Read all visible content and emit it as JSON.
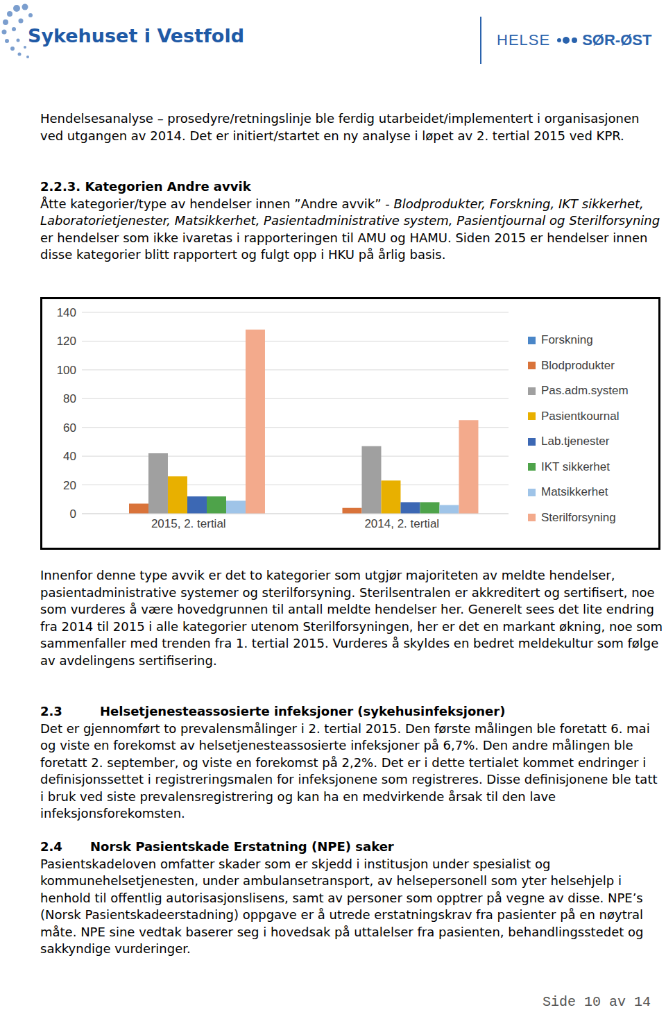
{
  "header": {
    "organization": "Sykehuset i Vestfold",
    "region": [
      "HELSE",
      "SØR-ØST"
    ]
  },
  "intro": "Hendelsesanalyse – prosedyre/retningslinje ble ferdig utarbeidet/implementert i organisasjonen ved utgangen av 2014. Det er initiert/startet en ny analyse i løpet av 2. tertial 2015 ved KPR.",
  "section_2_2_3": {
    "number": "2.2.3.",
    "title": "Kategorien Andre avvik",
    "text_before": "Åtte kategorier/type av hendelser innen ”Andre avvik” - ",
    "text_italic": "Blodprodukter, Forskning, IKT sikkerhet, Laboratorietjenester, Matsikkerhet, Pasientadministrative system, Pasientjournal og Sterilforsyning",
    "text_after": " er hendelser som ikke ivaretas i rapporteringen til AMU og HAMU. Siden 2015 er hendelser innen disse kategorier blitt rapportert og fulgt opp i HKU på årlig basis."
  },
  "chart_data": {
    "type": "bar",
    "categories": [
      "2015, 2. tertial",
      "2014, 2. tertial"
    ],
    "series": [
      {
        "name": "Forskning",
        "color": "#4a86c8",
        "values": [
          0,
          0
        ]
      },
      {
        "name": "Blodprodukter",
        "color": "#d9733a",
        "values": [
          7,
          4
        ]
      },
      {
        "name": "Pas.adm.system",
        "color": "#a0a0a0",
        "values": [
          42,
          47
        ]
      },
      {
        "name": "Pasientkournal",
        "color": "#e8b000",
        "values": [
          26,
          23
        ]
      },
      {
        "name": "Lab.tjenester",
        "color": "#3c68b4",
        "values": [
          12,
          8
        ]
      },
      {
        "name": "IKT sikkerhet",
        "color": "#4ea34a",
        "values": [
          12,
          8
        ]
      },
      {
        "name": "Matsikkerhet",
        "color": "#9fc4e8",
        "values": [
          9,
          6
        ]
      },
      {
        "name": "Sterilforsyning",
        "color": "#f3aa8c",
        "values": [
          128,
          65
        ]
      }
    ],
    "ylim": [
      0,
      140
    ],
    "yticks": [
      0,
      20,
      40,
      60,
      80,
      100,
      120,
      140
    ],
    "grid": true,
    "legend": "right"
  },
  "chart_comment": "Innenfor denne type avvik er det to kategorier som utgjør majoriteten av meldte hendelser, pasientadministrative systemer og sterilforsyning. Sterilsentralen er akkreditert og sertifisert, noe som vurderes å være hovedgrunnen til antall meldte hendelser her. Generelt sees det lite endring fra 2014 til 2015 i alle kategorier utenom Sterilforsyningen, her er det en markant økning, noe som sammenfaller med trenden fra 1. tertial 2015. Vurderes å skyldes en bedret meldekultur som følge av avdelingens sertifisering.",
  "section_2_3": {
    "number": "2.3",
    "title": "Helsetjenesteassosierte infeksjoner (sykehusinfeksjoner)",
    "text": "Det er gjennomført to prevalensmålinger i 2. tertial 2015. Den første målingen ble foretatt 6. mai og viste en forekomst av helsetjenesteassosierte infeksjoner på 6,7%. Den andre målingen ble foretatt 2. september, og viste en forekomst på 2,2%. Det er i dette tertialet kommet endringer i definisjonssettet i registreringsmalen for infeksjonene som registreres. Disse definisjonene ble tatt i bruk ved siste prevalensregistrering og kan ha en medvirkende årsak til den lave infeksjonsforekomsten."
  },
  "section_2_4": {
    "number": "2.4",
    "title": "Norsk Pasientskade Erstatning (NPE) saker",
    "text": "Pasientskadeloven omfatter skader som er skjedd i institusjon under spesialist og kommunehelsetjenesten, under ambulansetransport, av helsepersonell som yter helsehjelp i henhold til offentlig autorisasjonslisens, samt av personer som opptrer på vegne av disse. NPE’s (Norsk Pasientskadeerstadning) oppgave er å utrede erstatningskrav fra pasienter på en nøytral måte. NPE sine vedtak baserer seg i hovedsak på uttalelser fra pasienten, behandlingsstedet og sakkyndige vurderinger."
  },
  "footer": "Side 10 av 14"
}
